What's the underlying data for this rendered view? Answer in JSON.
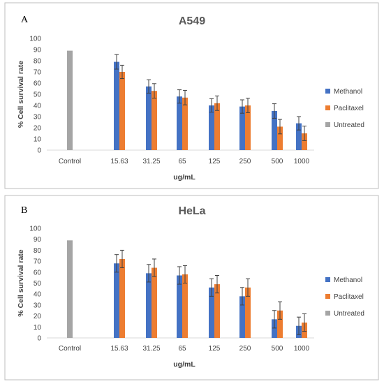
{
  "chart_data": [
    {
      "type": "bar",
      "panel": "A",
      "title": "A549",
      "xlabel": "ug/mL",
      "ylabel": "% Cell survival rate",
      "ylim": [
        0,
        100
      ],
      "yticks": [
        "0",
        "10",
        "20",
        "30",
        "40",
        "50",
        "60",
        "70",
        "80",
        "90",
        "100"
      ],
      "categories": [
        "Control",
        "15.63",
        "31.25",
        "65",
        "125",
        "250",
        "500",
        "1000"
      ],
      "legend_position": "right",
      "series": [
        {
          "name": "Methanol",
          "color": "#4472c4",
          "values": [
            null,
            79,
            57,
            48,
            40,
            39,
            35,
            24
          ],
          "errors": [
            null,
            6.5,
            6,
            6,
            6,
            6,
            6.5,
            6
          ]
        },
        {
          "name": "Paclitaxel",
          "color": "#ed7d31",
          "values": [
            null,
            70,
            53,
            47,
            42,
            40,
            21,
            15
          ],
          "errors": [
            null,
            6,
            6.5,
            6.5,
            6.5,
            6.5,
            6.5,
            6.5
          ]
        },
        {
          "name": "Untreated",
          "color": "#a5a5a5",
          "values": [
            89,
            null,
            null,
            null,
            null,
            null,
            null,
            null
          ],
          "errors": [
            null,
            null,
            null,
            null,
            null,
            null,
            null,
            null
          ]
        }
      ]
    },
    {
      "type": "bar",
      "panel": "B",
      "title": "HeLa",
      "xlabel": "ug/mL",
      "ylabel": "% Cell survival rate",
      "ylim": [
        0,
        100
      ],
      "yticks": [
        "0",
        "10",
        "20",
        "30",
        "40",
        "50",
        "60",
        "70",
        "80",
        "90",
        "100"
      ],
      "categories": [
        "Control",
        "15.63",
        "31.25",
        "65",
        "125",
        "250",
        "500",
        "1000"
      ],
      "legend_position": "right",
      "series": [
        {
          "name": "Methanol",
          "color": "#4472c4",
          "values": [
            null,
            68,
            59,
            57,
            46,
            38,
            17,
            11
          ],
          "errors": [
            null,
            8,
            8,
            8,
            8,
            8,
            8,
            8
          ]
        },
        {
          "name": "Paclitaxel",
          "color": "#ed7d31",
          "values": [
            null,
            72,
            64,
            58,
            49,
            46,
            25,
            14
          ],
          "errors": [
            null,
            8,
            8,
            8,
            8,
            8,
            8,
            8
          ]
        },
        {
          "name": "Untreated",
          "color": "#a5a5a5",
          "values": [
            89,
            null,
            null,
            null,
            null,
            null,
            null,
            null
          ],
          "errors": [
            null,
            null,
            null,
            null,
            null,
            null,
            null,
            null
          ]
        }
      ]
    }
  ]
}
